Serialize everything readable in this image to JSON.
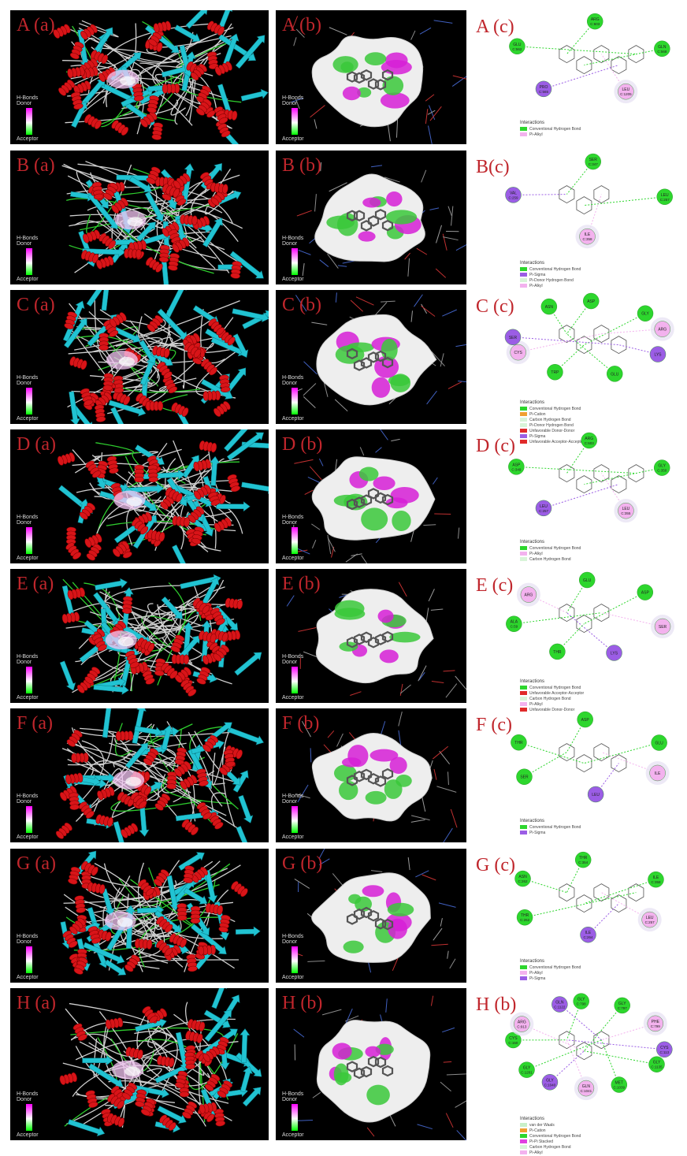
{
  "colors": {
    "label_red": "#c0262c",
    "helix_red": "#d81418",
    "sheet_cyan": "#21c3d2",
    "donor_magenta": "#ff00ff",
    "acceptor_green": "#00ff00",
    "hbond_green": "#2dd62d",
    "pi_alkyl_pink": "#f3b2ee",
    "pi_sigma_purple": "#9b5de5",
    "pi_cation_orange": "#f0a030",
    "unfavorable_red": "#e02a2a"
  },
  "hbonds_key": {
    "title": "H-Bonds",
    "donor": "Donor",
    "acceptor": "Acceptor"
  },
  "rows": [
    {
      "a_label": "A (a)",
      "b_label": "A (b)",
      "c_label": "A (c)",
      "residues": [
        "ARG C:603",
        "GLN C:568",
        "LEU C:1205",
        "PRO C:565",
        "GLU C:562"
      ],
      "interactions_title": "Interactions",
      "legend": [
        {
          "label": "Conventional Hydrogen Bond",
          "color": "#2dd62d"
        },
        {
          "label": "Pi-Alkyl",
          "color": "#f3b2ee"
        }
      ]
    },
    {
      "a_label": "B (a)",
      "b_label": "B (b)",
      "c_label": "B(c)",
      "residues": [
        "SER C:347",
        "LEU C:257",
        "ILE C:358",
        "VAL C:259"
      ],
      "interactions_title": "Interactions",
      "legend": [
        {
          "label": "Conventional Hydrogen Bond",
          "color": "#2dd62d"
        },
        {
          "label": "Pi-Sigma",
          "color": "#9b5de5"
        },
        {
          "label": "Pi-Donor Hydrogen Bond",
          "color": "#d8f4d8"
        },
        {
          "label": "Pi-Alkyl",
          "color": "#f3b2ee"
        }
      ]
    },
    {
      "a_label": "C (a)",
      "b_label": "C (b)",
      "c_label": "C (c)",
      "residues": [
        "ASP",
        "GLY",
        "ARG",
        "LYS",
        "GLU",
        "TRP",
        "CYS",
        "SER",
        "ASN"
      ],
      "interactions_title": "Interactions",
      "legend": [
        {
          "label": "Conventional Hydrogen Bond",
          "color": "#2dd62d"
        },
        {
          "label": "Pi-Cation",
          "color": "#f0a030"
        },
        {
          "label": "Carbon Hydrogen Bond",
          "color": "#d8f4d8"
        },
        {
          "label": "Pi-Donor Hydrogen Bond",
          "color": "#d8f4d8"
        },
        {
          "label": "Unfavorable Donor-Donor",
          "color": "#e02a2a"
        },
        {
          "label": "Pi-Sigma",
          "color": "#9b5de5"
        },
        {
          "label": "Unfavorable Acceptor-Acceptor",
          "color": "#e02a2a"
        }
      ]
    },
    {
      "a_label": "D (a)",
      "b_label": "D (b)",
      "c_label": "D (c)",
      "residues": [
        "ARG C:603",
        "GLY C:350",
        "LEU C:355",
        "LEU C:257",
        "ASP C:349"
      ],
      "interactions_title": "Interactions",
      "legend": [
        {
          "label": "Conventional Hydrogen Bond",
          "color": "#2dd62d"
        },
        {
          "label": "Pi-Alkyl",
          "color": "#f3b2ee"
        },
        {
          "label": "Carbon Hydrogen Bond",
          "color": "#d8f4d8"
        }
      ]
    },
    {
      "a_label": "E (a)",
      "b_label": "E (b)",
      "c_label": "E (c)",
      "residues": [
        "GLU",
        "ASP",
        "SER",
        "LYS",
        "THR",
        "ALA C:59",
        "ARG"
      ],
      "interactions_title": "Interactions",
      "legend": [
        {
          "label": "Conventional Hydrogen Bond",
          "color": "#2dd62d"
        },
        {
          "label": "Unfavorable Acceptor-Acceptor",
          "color": "#e02a2a"
        },
        {
          "label": "Carbon Hydrogen Bond",
          "color": "#d8f4d8"
        },
        {
          "label": "Pi-Alkyl",
          "color": "#f3b2ee"
        },
        {
          "label": "Unfavorable Donor-Donor",
          "color": "#e02a2a"
        }
      ]
    },
    {
      "a_label": "F (a)",
      "b_label": "F (b)",
      "c_label": "F (c)",
      "residues": [
        "ASP",
        "GLU",
        "ILE",
        "LEU",
        "SER",
        "THR"
      ],
      "interactions_title": "Interactions",
      "legend": [
        {
          "label": "Conventional Hydrogen Bond",
          "color": "#2dd62d"
        },
        {
          "label": "Pi-Sigma",
          "color": "#9b5de5"
        }
      ]
    },
    {
      "a_label": "G (a)",
      "b_label": "G (b)",
      "c_label": "G (c)",
      "residues": [
        "THR C:354",
        "ILE C:358",
        "LEU C:257",
        "ILE C:264",
        "THR C:262",
        "ASN C:262"
      ],
      "interactions_title": "Interactions",
      "legend": [
        {
          "label": "Conventional Hydrogen Bond",
          "color": "#2dd62d"
        },
        {
          "label": "Pi-Alkyl",
          "color": "#f3b2ee"
        },
        {
          "label": "Pi-Sigma",
          "color": "#9b5de5"
        }
      ]
    },
    {
      "a_label": "H (a)",
      "b_label": "H (b)",
      "c_label": "H (b)",
      "residues": [
        "GLY C:798",
        "GLY C:797",
        "PHE C:799",
        "CYS C:113",
        "GLY C:1135",
        "MET C:1039",
        "GLN C:1041",
        "GLY C:1040",
        "GLY C:1201",
        "CYS C:150",
        "ARG C:913",
        "GLN C:1122"
      ],
      "interactions_title": "Interactions",
      "legend": [
        {
          "label": "van der Waals",
          "color": "#c8f0c8"
        },
        {
          "label": "Pi-Cation",
          "color": "#f0a030"
        },
        {
          "label": "Conventional Hydrogen Bond",
          "color": "#2dd62d"
        },
        {
          "label": "Pi-Pi Stacked",
          "color": "#e040e0"
        },
        {
          "label": "Carbon Hydrogen Bond",
          "color": "#d8f4d8"
        },
        {
          "label": "Pi-Alkyl",
          "color": "#f3b2ee"
        }
      ]
    }
  ]
}
